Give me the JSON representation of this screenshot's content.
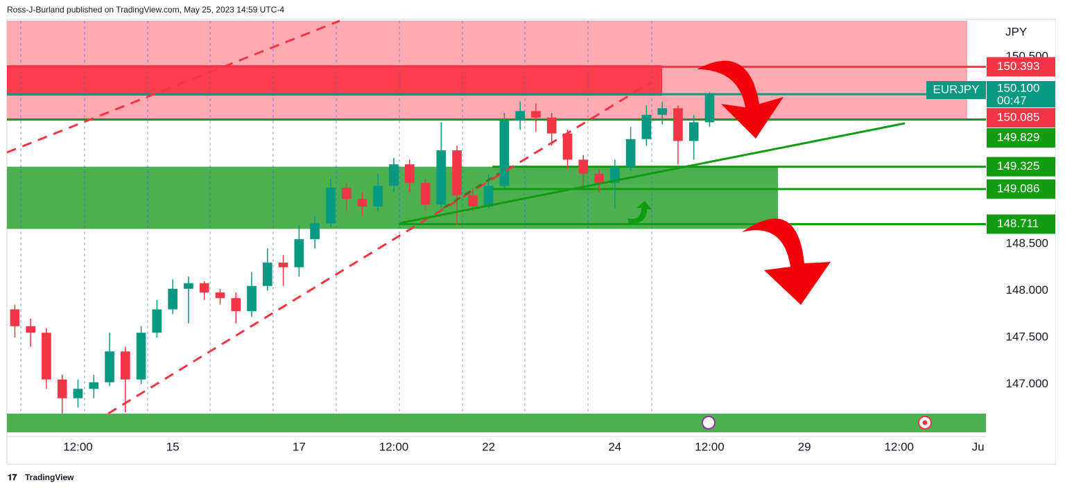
{
  "header": {
    "text": "Ross-J-Burland published on TradingView.com, May 25, 2023 14:59 UTC-4"
  },
  "footer": {
    "brand": "TradingView"
  },
  "chart_data": {
    "type": "candlestick",
    "symbol": "EURJPY",
    "currency": "JPY",
    "countdown": "00:47",
    "up_color": "#089981",
    "down_color": "#f23645",
    "categories": [
      null,
      null,
      null,
      null,
      "12:00",
      null,
      null,
      null,
      null,
      null,
      "15",
      null,
      null,
      null,
      null,
      null,
      null,
      null,
      "17",
      null,
      null,
      null,
      null,
      null,
      "12:00",
      null,
      null,
      null,
      null,
      null,
      "22",
      null,
      null,
      null,
      null,
      null,
      null,
      null,
      "24",
      null,
      null,
      null,
      null,
      null,
      "12:00",
      null,
      null,
      null,
      null,
      null,
      "29",
      null,
      null,
      null,
      null,
      null,
      "12:00",
      null,
      null,
      null,
      null,
      "Ju"
    ],
    "open": [
      147.8,
      147.62,
      147.55,
      147.05,
      146.85,
      146.95,
      147.02,
      147.35,
      147.05,
      147.55,
      147.8,
      148.02,
      148.08,
      147.98,
      147.92,
      147.78,
      148.05,
      148.3,
      148.25,
      148.55,
      148.72,
      149.1,
      148.98,
      148.9,
      149.12,
      149.35,
      149.15,
      148.92,
      149.5,
      149.02,
      148.9,
      149.12,
      149.82,
      149.92,
      149.85,
      149.68,
      149.4,
      149.25,
      149.15,
      149.32,
      149.62,
      149.88,
      149.95,
      149.6,
      149.8,
      null,
      null,
      null,
      null,
      null,
      null,
      null,
      null,
      null,
      null,
      null,
      null,
      null,
      null,
      null,
      null,
      null
    ],
    "high": [
      147.85,
      147.7,
      147.6,
      147.1,
      147.05,
      147.1,
      147.55,
      147.4,
      147.62,
      147.9,
      148.12,
      148.15,
      148.1,
      148.02,
      147.98,
      148.2,
      148.45,
      148.38,
      148.7,
      148.8,
      149.2,
      149.15,
      149.05,
      149.25,
      149.42,
      149.4,
      149.2,
      149.8,
      149.55,
      149.1,
      149.25,
      149.9,
      150.02,
      150.0,
      149.9,
      149.72,
      149.45,
      149.3,
      149.4,
      149.75,
      149.98,
      150.02,
      149.98,
      149.88,
      150.12,
      null,
      null,
      null,
      null,
      null,
      null,
      null,
      null,
      null,
      null,
      null,
      null,
      null,
      null,
      null,
      null,
      null
    ],
    "low": [
      147.5,
      147.4,
      146.95,
      146.55,
      146.75,
      146.85,
      146.98,
      146.7,
      147.0,
      147.5,
      147.75,
      147.65,
      147.9,
      147.85,
      147.65,
      147.72,
      148.0,
      148.05,
      148.15,
      148.45,
      148.68,
      148.85,
      148.8,
      148.85,
      149.05,
      149.05,
      148.85,
      148.88,
      148.7,
      148.85,
      148.88,
      149.08,
      149.72,
      149.7,
      149.55,
      149.3,
      149.1,
      149.05,
      148.88,
      149.28,
      149.55,
      149.78,
      149.35,
      149.4,
      149.75,
      null,
      null,
      null,
      null,
      null,
      null,
      null,
      null,
      null,
      null,
      null,
      null,
      null,
      null,
      null,
      null,
      null
    ],
    "close": [
      147.62,
      147.55,
      147.05,
      146.85,
      146.95,
      147.02,
      147.35,
      147.05,
      147.55,
      147.8,
      148.02,
      148.08,
      147.98,
      147.92,
      147.78,
      148.05,
      148.3,
      148.25,
      148.55,
      148.72,
      149.1,
      148.98,
      148.9,
      149.12,
      149.35,
      149.15,
      148.92,
      149.5,
      149.02,
      148.9,
      149.12,
      149.82,
      149.92,
      149.85,
      149.68,
      149.4,
      149.25,
      149.15,
      149.32,
      149.62,
      149.88,
      149.95,
      149.6,
      149.8,
      150.1,
      null,
      null,
      null,
      null,
      null,
      null,
      null,
      null,
      null,
      null,
      null,
      null,
      null,
      null,
      null,
      null,
      null
    ],
    "ylim": [
      146.485,
      150.885
    ],
    "yticks": [
      {
        "value": 147.0,
        "label": "147.000"
      },
      {
        "value": 147.5,
        "label": "147.500"
      },
      {
        "value": 148.0,
        "label": "148.000"
      },
      {
        "value": 148.5,
        "label": "148.500"
      },
      {
        "value": 150.5,
        "label": "150.500"
      }
    ],
    "levels": {
      "values": [
        150.393,
        150.1,
        150.085,
        149.829,
        149.325,
        149.086,
        148.711
      ],
      "value_labels": [
        "150.393",
        "150.100",
        "150.085",
        "149.829",
        "149.325",
        "149.086",
        "148.711"
      ],
      "colors": [
        "#f23645",
        "#089981",
        "#f23645",
        "#129c12",
        "#129c12",
        "#129c12",
        "#129c12"
      ]
    },
    "zones": [
      {
        "low": 149.829,
        "high": 150.885,
        "color": "#ffa9b1"
      },
      {
        "low": 150.085,
        "high": 150.41,
        "color": "#ff3c4b"
      },
      {
        "low": 148.66,
        "high": 149.325,
        "color": "#4caf50"
      }
    ]
  }
}
